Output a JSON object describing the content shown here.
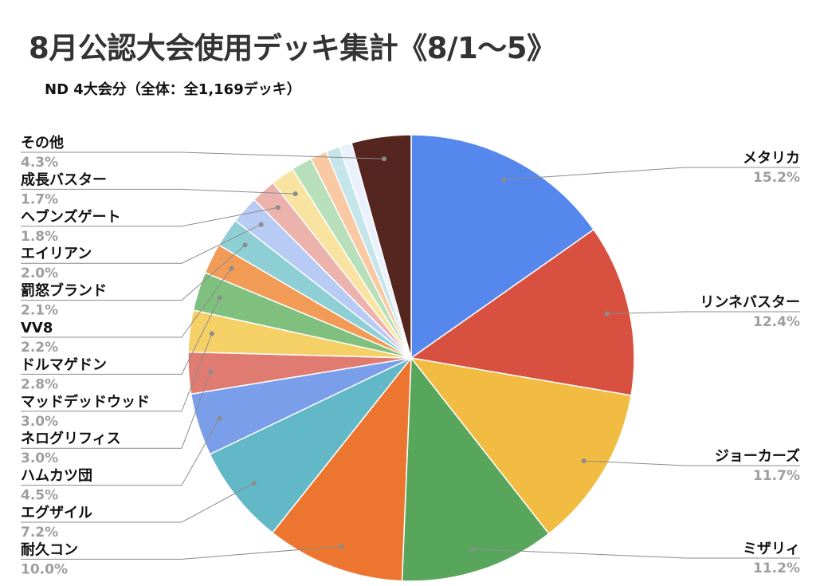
{
  "chart_data": {
    "type": "pie",
    "title": "8月公認大会使用デッキ集計《8/1〜5》",
    "subtitle": "ND 4大会分（全体：全1,169デッキ）",
    "slices": [
      {
        "label": "メタリカ",
        "value": 15.2,
        "value_label": "15.2%",
        "color": "#5587ec"
      },
      {
        "label": "リンネバスター",
        "value": 12.4,
        "value_label": "12.4%",
        "color": "#d85140"
      },
      {
        "label": "ジョーカーズ",
        "value": 11.7,
        "value_label": "11.7%",
        "color": "#f1bc41"
      },
      {
        "label": "ミザリィ",
        "value": 11.2,
        "value_label": "11.2%",
        "color": "#58a65c"
      },
      {
        "label": "耐久コン",
        "value": 10.0,
        "value_label": "10.0%",
        "color": "#ec7630"
      },
      {
        "label": "エグザイル",
        "value": 7.2,
        "value_label": "7.2%",
        "color": "#62b8c6"
      },
      {
        "label": "ハムカツ団",
        "value": 4.5,
        "value_label": "4.5%",
        "color": "#7b9eeb"
      },
      {
        "label": "ネログリフィス",
        "value": 3.0,
        "value_label": "3.0%",
        "color": "#e07b72"
      },
      {
        "label": "マッドデッドウッド",
        "value": 3.0,
        "value_label": "3.0%",
        "color": "#f4d067"
      },
      {
        "label": "ドルマゲドン",
        "value": 2.8,
        "value_label": "2.8%",
        "color": "#7fc07f"
      },
      {
        "label": "VV8",
        "value": 2.2,
        "value_label": "2.2%",
        "color": "#f19b57"
      },
      {
        "label": "罰怒ブランド",
        "value": 2.1,
        "value_label": "2.1%",
        "color": "#8ecfd6"
      },
      {
        "label": "エイリアン",
        "value": 2.0,
        "value_label": "2.0%",
        "color": "#b8cbf4"
      },
      {
        "label": "ヘブンズゲート",
        "value": 1.8,
        "value_label": "1.8%",
        "color": "#ecb3ad"
      },
      {
        "label": "成長バスター",
        "value": 1.7,
        "value_label": "1.7%",
        "color": "#f8e3a1"
      },
      {
        "label": "",
        "value": 1.5,
        "value_label": "",
        "color": "#b7dfba"
      },
      {
        "label": "",
        "value": 1.2,
        "value_label": "",
        "color": "#f8c9a3"
      },
      {
        "label": "",
        "value": 1.0,
        "value_label": "",
        "color": "#c4e6ea"
      },
      {
        "label": "",
        "value": 0.9,
        "value_label": "",
        "color": "#eaf1fd"
      },
      {
        "label": "その他",
        "value": 4.3,
        "value_label": "4.3%",
        "color": "#552520"
      }
    ],
    "legend": "none"
  }
}
